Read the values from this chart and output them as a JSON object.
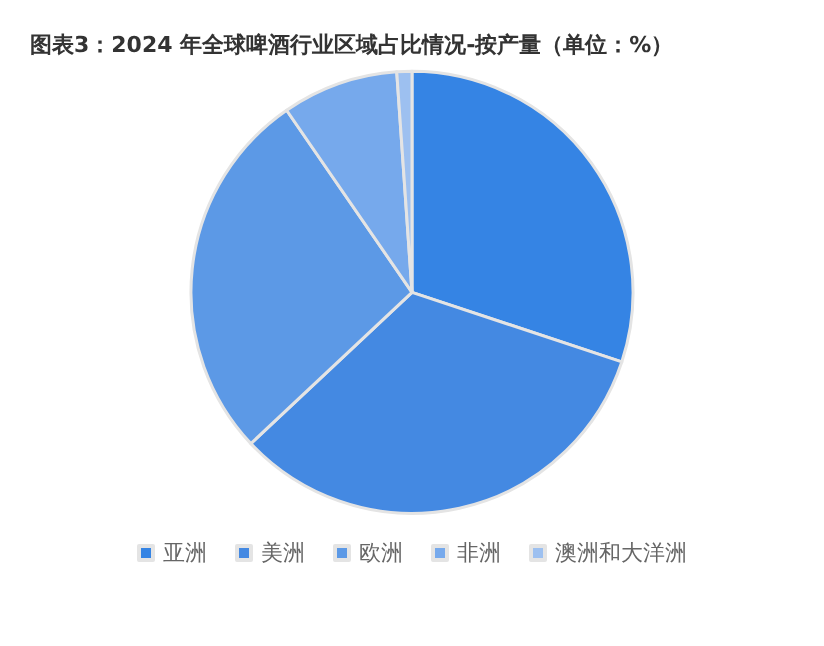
{
  "chart_data": {
    "type": "pie",
    "title": "图表3：2024 年全球啤酒行业区域占比情况-按产量（单位：%）",
    "categories": [
      "亚洲",
      "美洲",
      "欧洲",
      "非洲",
      "澳洲和大洋洲"
    ],
    "values": [
      30.1,
      32.9,
      27.4,
      8.5,
      1.1
    ],
    "colors": [
      "#3584e4",
      "#4489e2",
      "#5c99e6",
      "#76a9ec",
      "#9dc0f0"
    ],
    "legend": "bottom"
  }
}
